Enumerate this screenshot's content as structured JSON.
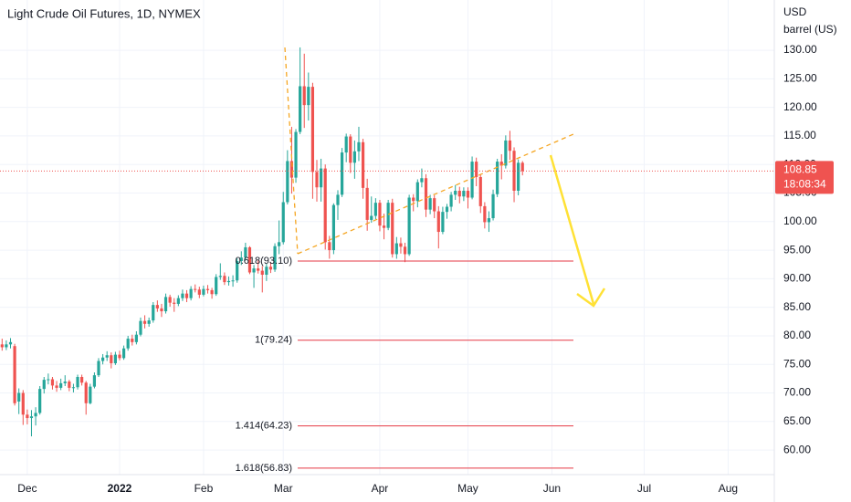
{
  "chart_data": {
    "type": "candlestick",
    "title": "Light Crude Oil Futures, 1D, NYMEX",
    "currency": "USD",
    "unit": "barrel (US)",
    "up_color": "#26a69a",
    "down_color": "#ef5350",
    "grid": true,
    "xlim": [
      -6.5,
      178
    ],
    "ylim": [
      55.7,
      138.8
    ],
    "yticks": [
      {
        "value": 60,
        "label": "60.00"
      },
      {
        "value": 65,
        "label": "65.00"
      },
      {
        "value": 70,
        "label": "70.00"
      },
      {
        "value": 75,
        "label": "75.00"
      },
      {
        "value": 80,
        "label": "80.00"
      },
      {
        "value": 85,
        "label": "85.00"
      },
      {
        "value": 90,
        "label": "90.00"
      },
      {
        "value": 95,
        "label": "95.00"
      },
      {
        "value": 100,
        "label": "100.00"
      },
      {
        "value": 105,
        "label": "105.00"
      },
      {
        "value": 110,
        "label": "110.00"
      },
      {
        "value": 115,
        "label": "115.00"
      },
      {
        "value": 120,
        "label": "120.00"
      },
      {
        "value": 125,
        "label": "125.00"
      },
      {
        "value": 130,
        "label": "130.00"
      }
    ],
    "xticks": [
      {
        "value": 0,
        "label": "Dec"
      },
      {
        "value": 22,
        "label": "2022"
      },
      {
        "value": 42,
        "label": "Feb"
      },
      {
        "value": 61,
        "label": "Mar"
      },
      {
        "value": 84,
        "label": "Apr"
      },
      {
        "value": 105,
        "label": "May"
      },
      {
        "value": 125,
        "label": "Jun"
      },
      {
        "value": 147,
        "label": "Jul"
      },
      {
        "value": 167,
        "label": "Aug"
      }
    ],
    "last_price": 108.85,
    "countdown": "18:08:34",
    "fib_levels": [
      {
        "label": "0.618(93.10)",
        "value": 93.1
      },
      {
        "label": "1(79.24)",
        "value": 79.24
      },
      {
        "label": "1.414(64.23)",
        "value": 64.23
      },
      {
        "label": "1.618(56.83)",
        "value": 56.83
      }
    ],
    "x": [
      -6,
      -5,
      -4,
      -3,
      -2,
      -1,
      0,
      1,
      2,
      3,
      4,
      5,
      6,
      7,
      8,
      9,
      10,
      11,
      12,
      13,
      14,
      15,
      16,
      17,
      18,
      19,
      20,
      21,
      22,
      23,
      24,
      25,
      26,
      27,
      28,
      29,
      30,
      31,
      32,
      33,
      34,
      35,
      36,
      37,
      38,
      39,
      40,
      41,
      42,
      43,
      44,
      45,
      46,
      47,
      48,
      49,
      50,
      51,
      52,
      53,
      54,
      55,
      56,
      57,
      58,
      59,
      60,
      61,
      62,
      63,
      64,
      65,
      66,
      67,
      68,
      69,
      70,
      71,
      72,
      73,
      74,
      75,
      76,
      77,
      78,
      79,
      80,
      81,
      82,
      83,
      84,
      85,
      86,
      87,
      88,
      89,
      90,
      91,
      92,
      93,
      94,
      95,
      96,
      97,
      98,
      99,
      100,
      101,
      102,
      103,
      104,
      105,
      106,
      107,
      108,
      109,
      110,
      111,
      112,
      113,
      114,
      115,
      116,
      117,
      118
    ],
    "candles": [
      [
        78.5,
        79.5,
        77.4,
        78
      ],
      [
        78,
        79.2,
        77.5,
        78.5
      ],
      [
        78.5,
        79.6,
        77.8,
        78.9
      ],
      [
        78.2,
        78.6,
        67.8,
        68.2
      ],
      [
        68.5,
        70.8,
        66.3,
        70
      ],
      [
        70,
        70.5,
        64.4,
        66.2
      ],
      [
        66.2,
        67.1,
        64.5,
        65.6
      ],
      [
        65.6,
        67,
        62.4,
        65.9
      ],
      [
        65.9,
        67.5,
        64.3,
        66.5
      ],
      [
        66.5,
        71.2,
        66.2,
        70.7
      ],
      [
        70.7,
        72.8,
        69.9,
        72.3
      ],
      [
        72.3,
        73.4,
        71.5,
        72.4
      ],
      [
        72.4,
        72.8,
        70.6,
        71.3
      ],
      [
        71.3,
        72.1,
        70.2,
        70.9
      ],
      [
        70.9,
        72.5,
        70.5,
        71.7
      ],
      [
        71.7,
        73.1,
        71.2,
        72
      ],
      [
        72,
        72.3,
        70.3,
        70.9
      ],
      [
        70.9,
        71.6,
        70.1,
        71
      ],
      [
        71,
        73.2,
        70.6,
        72.8
      ],
      [
        72.8,
        73.2,
        71.3,
        71.8
      ],
      [
        71.8,
        72.1,
        66.2,
        68.2
      ],
      [
        68.2,
        71.6,
        68,
        71.1
      ],
      [
        71.1,
        73.6,
        70.8,
        73.1
      ],
      [
        73.1,
        76.1,
        72.8,
        75.6
      ],
      [
        75.6,
        76.8,
        75,
        76.2
      ],
      [
        76.2,
        77.3,
        75.6,
        76.6
      ],
      [
        76.6,
        77.1,
        74.3,
        75.2
      ],
      [
        75.2,
        77.2,
        74.9,
        76.7
      ],
      [
        76.7,
        77.4,
        75.7,
        76.1
      ],
      [
        76.1,
        78.3,
        75.8,
        77.8
      ],
      [
        77.8,
        80,
        77.4,
        79.5
      ],
      [
        79.5,
        80.2,
        78.3,
        78.9
      ],
      [
        78.9,
        80.8,
        78.5,
        80.2
      ],
      [
        80.2,
        83.2,
        79.9,
        82.6
      ],
      [
        82.6,
        83.6,
        81.3,
        82.1
      ],
      [
        82.1,
        83.2,
        81.6,
        82.7
      ],
      [
        82.7,
        85.9,
        82.3,
        85.4
      ],
      [
        85.4,
        86.2,
        84.2,
        84.8
      ],
      [
        84.8,
        85.6,
        83.3,
        84.3
      ],
      [
        84.3,
        87.4,
        83.9,
        86.8
      ],
      [
        86.8,
        87.2,
        85.1,
        85.8
      ],
      [
        85.8,
        86.6,
        84.2,
        85.6
      ],
      [
        85.6,
        87.1,
        85.2,
        86.6
      ],
      [
        86.6,
        88.1,
        86.1,
        87.4
      ],
      [
        87.4,
        88,
        85.9,
        86.6
      ],
      [
        86.6,
        88.7,
        86.2,
        88.2
      ],
      [
        88.2,
        89,
        87.6,
        88.1
      ],
      [
        88.1,
        88.6,
        86.6,
        87.2
      ],
      [
        87.2,
        88.8,
        86.9,
        88.2
      ],
      [
        88.2,
        88.9,
        87.4,
        88
      ],
      [
        88,
        88.4,
        86.5,
        87.3
      ],
      [
        87.3,
        90.8,
        87,
        90.3
      ],
      [
        90.3,
        92.7,
        89.8,
        90.5
      ],
      [
        90.5,
        91.1,
        88.9,
        89.4
      ],
      [
        89.4,
        90.4,
        88.8,
        89.6
      ],
      [
        89.6,
        90.6,
        88.6,
        89.7
      ],
      [
        89.7,
        93.6,
        89.3,
        93.1
      ],
      [
        93.1,
        94.8,
        92.4,
        93.7
      ],
      [
        93.7,
        96.3,
        93.2,
        95.5
      ],
      [
        95.5,
        95.7,
        90.8,
        91.1
      ],
      [
        91.1,
        92.4,
        88.4,
        91.8
      ],
      [
        91.8,
        93.2,
        90.9,
        91.4
      ],
      [
        91.4,
        92.2,
        87.6,
        90.7
      ],
      [
        90.7,
        92.6,
        89.6,
        92.1
      ],
      [
        92.1,
        92.9,
        91,
        91.6
      ],
      [
        91.6,
        96.2,
        91.2,
        95.7
      ],
      [
        95.7,
        100.2,
        94.3,
        96.4
      ],
      [
        96.4,
        105.2,
        96,
        103.4
      ],
      [
        103.4,
        112.5,
        103,
        110.6
      ],
      [
        110.6,
        116.6,
        104.9,
        107.7
      ],
      [
        107.7,
        116.2,
        106.8,
        115.7
      ],
      [
        115.7,
        130.5,
        115.3,
        123.7
      ],
      [
        123.7,
        129.4,
        116.4,
        120.4
      ],
      [
        120.4,
        126.1,
        117.7,
        123.6
      ],
      [
        123.6,
        124.3,
        104,
        108.7
      ],
      [
        108.7,
        110.8,
        103.5,
        106
      ],
      [
        106,
        111,
        103.5,
        109.3
      ],
      [
        109.3,
        110,
        95.1,
        96.4
      ],
      [
        96.4,
        97.5,
        93.5,
        95
      ],
      [
        95,
        103.2,
        94.3,
        102.9
      ],
      [
        102.9,
        105.5,
        100.3,
        104.7
      ],
      [
        104.7,
        112.9,
        104.3,
        112.1
      ],
      [
        112.1,
        115.4,
        110.4,
        114.9
      ],
      [
        114.9,
        115.3,
        108.5,
        110.3
      ],
      [
        110.3,
        114.2,
        107.5,
        112.3
      ],
      [
        112.3,
        116.6,
        110.6,
        113.9
      ],
      [
        113.9,
        114.5,
        104,
        105.9
      ],
      [
        105.9,
        107.5,
        98.4,
        100.3
      ],
      [
        100.3,
        104.4,
        99.8,
        101
      ],
      [
        101,
        104.1,
        100.4,
        103.3
      ],
      [
        103.3,
        103.8,
        98.3,
        99.3
      ],
      [
        99.3,
        101.4,
        96.9,
        98.9
      ],
      [
        98.9,
        103.8,
        98.5,
        103.3
      ],
      [
        103.3,
        104,
        93.7,
        94.3
      ],
      [
        94.3,
        97.3,
        93.5,
        96.2
      ],
      [
        96.2,
        97.2,
        94.4,
        95.6
      ],
      [
        95.6,
        96.3,
        92.9,
        94.3
      ],
      [
        94.3,
        104.7,
        94,
        104.2
      ],
      [
        104.2,
        104.8,
        101.8,
        103.6
      ],
      [
        103.6,
        107.4,
        102.5,
        106.9
      ],
      [
        106.9,
        109.3,
        106,
        107.6
      ],
      [
        107.6,
        108.3,
        100.8,
        102.1
      ],
      [
        102.1,
        104.7,
        101.3,
        104.1
      ],
      [
        104.1,
        104.6,
        100.6,
        101.8
      ],
      [
        101.8,
        102.7,
        95.3,
        98.2
      ],
      [
        98.2,
        102.6,
        97.8,
        101.7
      ],
      [
        101.7,
        103.1,
        100.5,
        102.6
      ],
      [
        102.6,
        105.2,
        101.8,
        104.7
      ],
      [
        104.7,
        106.4,
        103.8,
        105.4
      ],
      [
        105.4,
        106.1,
        103.2,
        104.4
      ],
      [
        104.4,
        106,
        103.6,
        105.4
      ],
      [
        105.4,
        106,
        102.3,
        104.2
      ],
      [
        104.2,
        111.4,
        103.9,
        110.5
      ],
      [
        110.5,
        111.2,
        106.2,
        107.8
      ],
      [
        107.8,
        108.2,
        101.5,
        102.7
      ],
      [
        102.7,
        103.4,
        98.8,
        99.9
      ],
      [
        99.9,
        101.8,
        98.2,
        100.6
      ],
      [
        100.6,
        105.6,
        100.2,
        104.8
      ],
      [
        104.8,
        111,
        104.3,
        110.5
      ],
      [
        110.5,
        111.8,
        107.4,
        109.8
      ],
      [
        109.8,
        115.1,
        109.3,
        114.2
      ],
      [
        114.2,
        115.9,
        110.8,
        112.4
      ],
      [
        112.4,
        113,
        103.4,
        105.4
      ],
      [
        105.4,
        110.9,
        104.6,
        110.3
      ],
      [
        110.3,
        110.6,
        108.1,
        108.85
      ]
    ]
  }
}
